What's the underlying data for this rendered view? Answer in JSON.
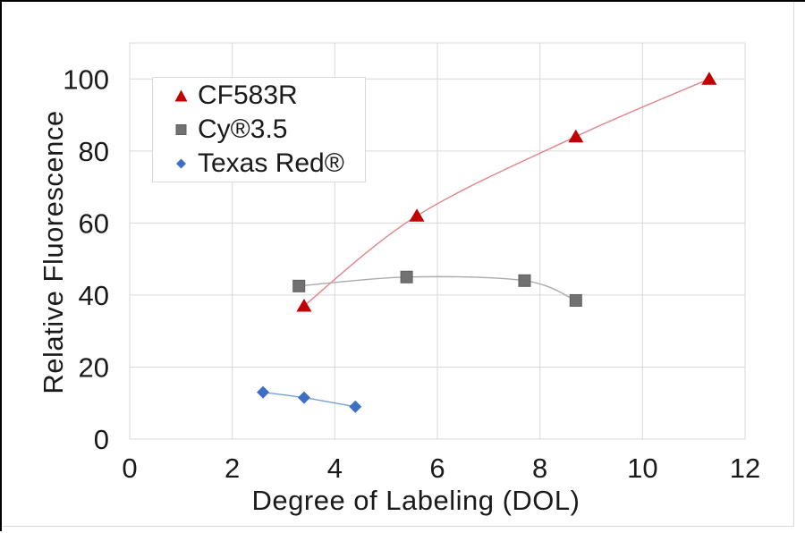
{
  "chart_data": {
    "type": "scatter",
    "title": "",
    "xlabel": "Degree of Labeling (DOL)",
    "ylabel": "Relative Fluorescence",
    "xlim": [
      0,
      12
    ],
    "ylim": [
      0,
      110
    ],
    "x_ticks": [
      0,
      2,
      4,
      6,
      8,
      10,
      12
    ],
    "y_ticks": [
      0,
      20,
      40,
      60,
      80,
      100
    ],
    "grid": true,
    "legend_position": "top-left",
    "colors": {
      "grid": "#d9d9d9",
      "text": "#1a1a1a",
      "frame": "#000000",
      "background": "#ffffff"
    },
    "series": [
      {
        "name": "CF583R",
        "marker": "triangle",
        "marker_color": "#c00000",
        "line_color": "#e2838b",
        "points": [
          [
            3.4,
            37
          ],
          [
            5.6,
            62
          ],
          [
            8.7,
            84
          ],
          [
            11.3,
            100
          ]
        ]
      },
      {
        "name": "Cy®3.5",
        "marker": "square",
        "marker_color": "#717171",
        "line_color": "#ababab",
        "points": [
          [
            3.3,
            42.5
          ],
          [
            5.4,
            45
          ],
          [
            7.7,
            44
          ],
          [
            8.7,
            38.5
          ]
        ]
      },
      {
        "name": "Texas Red®",
        "marker": "diamond",
        "marker_color": "#3d6fc4",
        "line_color": "#74a1d8",
        "points": [
          [
            2.6,
            13
          ],
          [
            3.4,
            11.5
          ],
          [
            4.4,
            9
          ]
        ]
      }
    ]
  }
}
